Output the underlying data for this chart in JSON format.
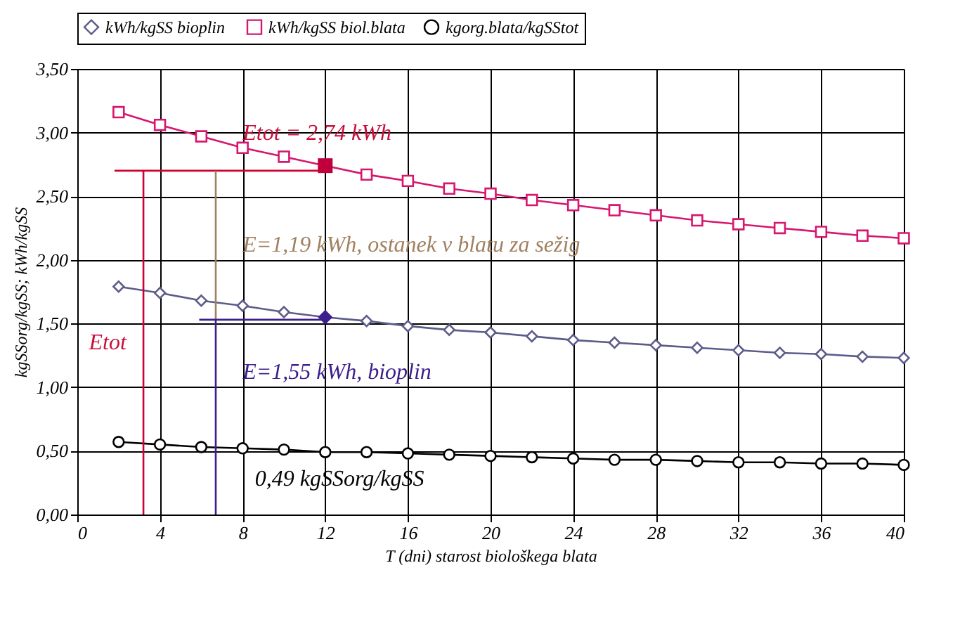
{
  "chart_data": {
    "type": "line",
    "xlabel": "T (dni) starost biološkega blata",
    "ylabel": "kgSSorg/kgSS;   kWh/kgSS",
    "xlim": [
      0,
      40
    ],
    "xticks": [
      0,
      4,
      8,
      12,
      16,
      20,
      24,
      28,
      32,
      36,
      40
    ],
    "ylim": [
      0,
      3.5
    ],
    "yticks": [
      {
        "value": 0,
        "label": "0,00"
      },
      {
        "value": 0.5,
        "label": "0,50"
      },
      {
        "value": 1,
        "label": "1,00"
      },
      {
        "value": 1.5,
        "label": "1,50"
      },
      {
        "value": 2,
        "label": "2,00"
      },
      {
        "value": 2.5,
        "label": "2,50"
      },
      {
        "value": 3,
        "label": "3,00"
      },
      {
        "value": 3.5,
        "label": "3,50"
      }
    ],
    "grid": true,
    "legend": "top",
    "series": [
      {
        "name": "kWh/kgSS  bioplin",
        "marker": "diamond",
        "color": "#5c5c8a",
        "x": [
          2,
          4,
          6,
          8,
          10,
          12,
          14,
          16,
          18,
          20,
          22,
          24,
          26,
          28,
          30,
          32,
          34,
          36,
          38,
          40
        ],
        "values": [
          1.79,
          1.74,
          1.68,
          1.64,
          1.59,
          1.55,
          1.52,
          1.48,
          1.45,
          1.43,
          1.4,
          1.37,
          1.35,
          1.33,
          1.31,
          1.29,
          1.27,
          1.26,
          1.24,
          1.23
        ]
      },
      {
        "name": "kWh/kgSS biol.blata",
        "marker": "square",
        "color": "#d6176f",
        "x": [
          2,
          4,
          6,
          8,
          10,
          12,
          14,
          16,
          18,
          20,
          22,
          24,
          26,
          28,
          30,
          32,
          34,
          36,
          38,
          40
        ],
        "values": [
          3.16,
          3.06,
          2.97,
          2.88,
          2.81,
          2.74,
          2.67,
          2.62,
          2.56,
          2.52,
          2.47,
          2.43,
          2.39,
          2.35,
          2.31,
          2.28,
          2.25,
          2.22,
          2.19,
          2.17
        ]
      },
      {
        "name": "kgorg.blata/kgSStot",
        "marker": "circle",
        "color": "#000000",
        "x": [
          2,
          4,
          6,
          8,
          10,
          12,
          14,
          16,
          18,
          20,
          22,
          24,
          26,
          28,
          30,
          32,
          34,
          36,
          38,
          40
        ],
        "values": [
          0.57,
          0.55,
          0.53,
          0.52,
          0.51,
          0.49,
          0.49,
          0.48,
          0.47,
          0.46,
          0.45,
          0.44,
          0.43,
          0.43,
          0.42,
          0.41,
          0.41,
          0.4,
          0.4,
          0.39
        ]
      },
      {
        "type": "scatter",
        "marker": "square",
        "color": "#c0003c",
        "x": [
          12
        ],
        "values": [
          2.74
        ]
      },
      {
        "type": "scatter",
        "marker": "diamond",
        "color": "#3c1e8c",
        "x": [
          12
        ],
        "values": [
          1.55
        ]
      },
      {
        "type": "line",
        "marker": "none",
        "color": "#cc0033",
        "x": [
          1.8,
          12
        ],
        "values": [
          2.7,
          2.7
        ]
      },
      {
        "type": "line",
        "marker": "none",
        "color": "#cc0033",
        "x": [
          3.2,
          3.2
        ],
        "values": [
          0,
          2.7
        ]
      },
      {
        "type": "line",
        "marker": "none",
        "color": "#a08060",
        "x": [
          6.7,
          6.7
        ],
        "values": [
          1.53,
          2.7
        ]
      },
      {
        "type": "line",
        "marker": "none",
        "color": "#3c1e8c",
        "x": [
          5.9,
          12
        ],
        "values": [
          1.53,
          1.53
        ]
      },
      {
        "type": "line",
        "marker": "none",
        "color": "#3c1e8c",
        "x": [
          6.7,
          6.7
        ],
        "values": [
          0,
          1.53
        ]
      }
    ],
    "annotations": [
      "Etot = 2,74 kWh",
      "E=1,19  kWh, ostanek v blatu za sežig",
      "E=1,55  kWh, bioplin",
      "0,49 kgSSorg/kgSS",
      "Etot"
    ]
  }
}
